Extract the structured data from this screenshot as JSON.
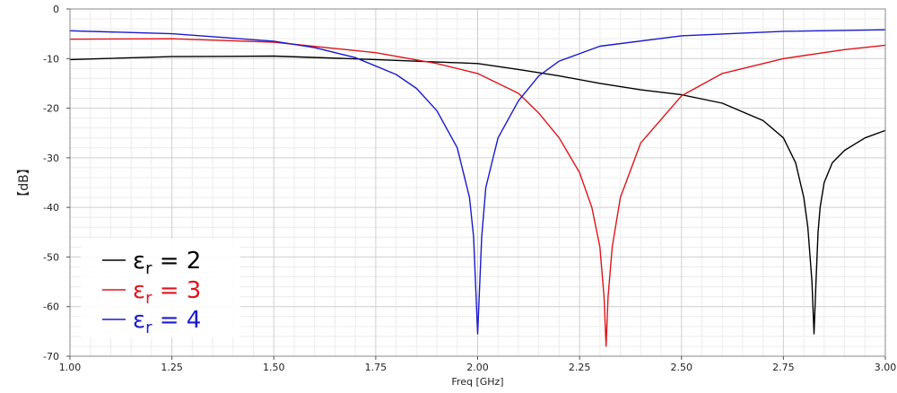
{
  "chart_data": {
    "type": "line",
    "xlabel": "Freq [GHz]",
    "ylabel": "【dB】",
    "xlim": [
      1.0,
      3.0
    ],
    "ylim": [
      -70,
      0
    ],
    "x_ticks": [
      "1.00",
      "1.25",
      "1.50",
      "1.75",
      "2.00",
      "2.25",
      "2.50",
      "2.75",
      "3.00"
    ],
    "y_ticks": [
      "0",
      "-10",
      "-20",
      "-30",
      "-40",
      "-50",
      "-60",
      "-70"
    ],
    "grid": true,
    "legend_position": "bottom-left",
    "series": [
      {
        "name": "εr = 2",
        "legend": {
          "symbol": "ε",
          "sub": "r",
          "rest": " = 2"
        },
        "color": "#000000",
        "x": [
          1.0,
          1.25,
          1.5,
          1.75,
          2.0,
          2.1,
          2.2,
          2.3,
          2.4,
          2.5,
          2.6,
          2.7,
          2.75,
          2.78,
          2.8,
          2.81,
          2.82,
          2.825,
          2.83,
          2.835,
          2.84,
          2.85,
          2.87,
          2.9,
          2.95,
          3.0
        ],
        "y": [
          -10.2,
          -9.6,
          -9.5,
          -10.2,
          -11.0,
          -12.2,
          -13.5,
          -15.0,
          -16.3,
          -17.3,
          -19.0,
          -22.5,
          -26.0,
          -31.0,
          -38.0,
          -44.0,
          -55.0,
          -65.5,
          -55.0,
          -45.0,
          -40.0,
          -35.0,
          -31.0,
          -28.5,
          -26.0,
          -24.5
        ]
      },
      {
        "name": "εr = 3",
        "legend": {
          "symbol": "ε",
          "sub": "r",
          "rest": " = 3"
        },
        "color": "#e0141c",
        "x": [
          1.0,
          1.25,
          1.5,
          1.75,
          1.9,
          2.0,
          2.1,
          2.15,
          2.2,
          2.25,
          2.28,
          2.3,
          2.31,
          2.315,
          2.32,
          2.33,
          2.35,
          2.4,
          2.5,
          2.6,
          2.75,
          2.9,
          3.0
        ],
        "y": [
          -6.1,
          -6.0,
          -6.7,
          -8.8,
          -11.0,
          -13.0,
          -17.0,
          -21.0,
          -26.0,
          -33.0,
          -40.0,
          -48.0,
          -58.0,
          -68.0,
          -58.0,
          -48.0,
          -38.0,
          -27.0,
          -17.5,
          -13.0,
          -10.0,
          -8.2,
          -7.3
        ]
      },
      {
        "name": "εr = 4",
        "legend": {
          "symbol": "ε",
          "sub": "r",
          "rest": " = 4"
        },
        "color": "#1a1acc",
        "x": [
          1.0,
          1.25,
          1.5,
          1.6,
          1.7,
          1.8,
          1.85,
          1.9,
          1.95,
          1.98,
          1.99,
          2.0,
          2.01,
          2.02,
          2.05,
          2.1,
          2.15,
          2.2,
          2.3,
          2.5,
          2.75,
          3.0
        ],
        "y": [
          -4.4,
          -5.0,
          -6.5,
          -7.8,
          -9.8,
          -13.2,
          -16.0,
          -20.5,
          -28.0,
          -38.0,
          -46.0,
          -65.5,
          -46.0,
          -36.0,
          -26.0,
          -18.5,
          -13.5,
          -10.5,
          -7.5,
          -5.4,
          -4.5,
          -4.2
        ]
      }
    ]
  }
}
